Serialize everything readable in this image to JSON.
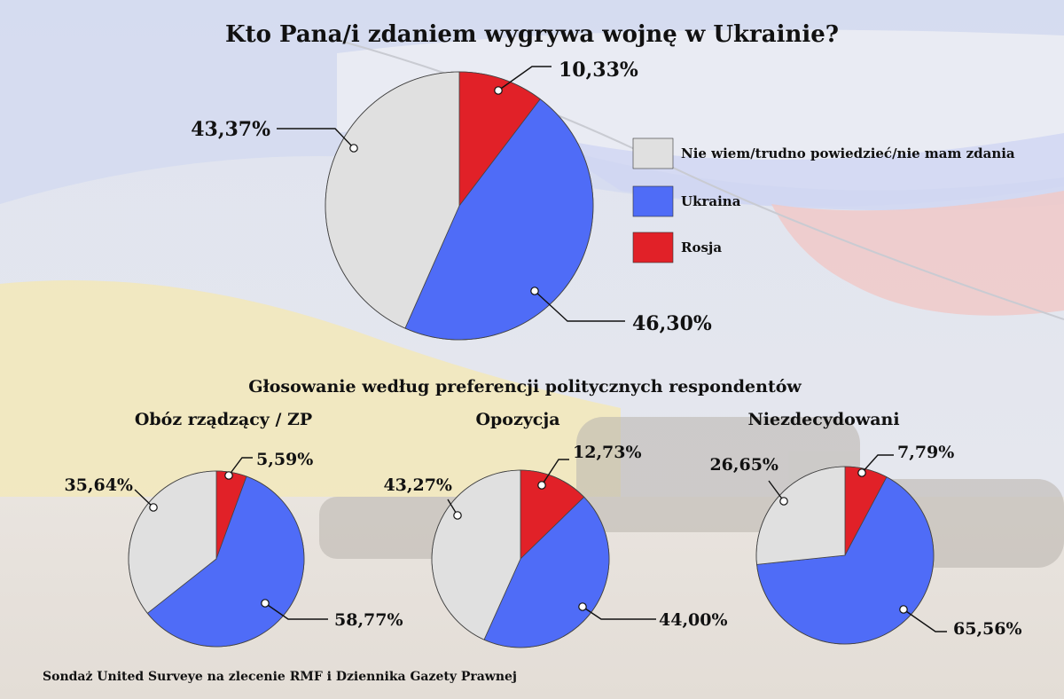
{
  "title": "Kto Pana/i zdaniem wygrywa wojnę w Ukrainie?",
  "subtitle": "Głosowanie według preferencji politycznych respondentów",
  "source": "Sondaż United Surveye na zlecenie RMF i Dziennika Gazety Prawnej",
  "legend": [
    {
      "label": "Nie wiem/trudno powiedzieć/nie mam zdania",
      "color": "#e0e0e0"
    },
    {
      "label": "Ukraina",
      "color": "#4f6cf7"
    },
    {
      "label": "Rosja",
      "color": "#e12128"
    }
  ],
  "chart_data": [
    {
      "type": "pie",
      "title": "",
      "slices": [
        {
          "name": "Rosja",
          "value": 10.33,
          "label": "10,33%",
          "color": "#e12128"
        },
        {
          "name": "Ukraina",
          "value": 46.3,
          "label": "46,30%",
          "color": "#4f6cf7"
        },
        {
          "name": "Nie wiem/trudno powiedzieć/nie mam zdania",
          "value": 43.37,
          "label": "43,37%",
          "color": "#e0e0e0"
        }
      ]
    },
    {
      "type": "pie",
      "title": "Obóz rządzący / ZP",
      "slices": [
        {
          "name": "Rosja",
          "value": 5.59,
          "label": "5,59%",
          "color": "#e12128"
        },
        {
          "name": "Ukraina",
          "value": 58.77,
          "label": "58,77%",
          "color": "#4f6cf7"
        },
        {
          "name": "Nie wiem/trudno powiedzieć/nie mam zdania",
          "value": 35.64,
          "label": "35,64%",
          "color": "#e0e0e0"
        }
      ]
    },
    {
      "type": "pie",
      "title": "Opozycja",
      "slices": [
        {
          "name": "Rosja",
          "value": 12.73,
          "label": "12,73%",
          "color": "#e12128"
        },
        {
          "name": "Ukraina",
          "value": 44.0,
          "label": "44,00%",
          "color": "#4f6cf7"
        },
        {
          "name": "Nie wiem/trudno powiedzieć/nie mam zdania",
          "value": 43.27,
          "label": "43,27%",
          "color": "#e0e0e0"
        }
      ]
    },
    {
      "type": "pie",
      "title": "Niezdecydowani",
      "slices": [
        {
          "name": "Rosja",
          "value": 7.79,
          "label": "7,79%",
          "color": "#e12128"
        },
        {
          "name": "Ukraina",
          "value": 65.56,
          "label": "65,56%",
          "color": "#4f6cf7"
        },
        {
          "name": "Nie wiem/trudno powiedzieć/nie mam zdania",
          "value": 26.65,
          "label": "26,65%",
          "color": "#e0e0e0"
        }
      ]
    }
  ]
}
